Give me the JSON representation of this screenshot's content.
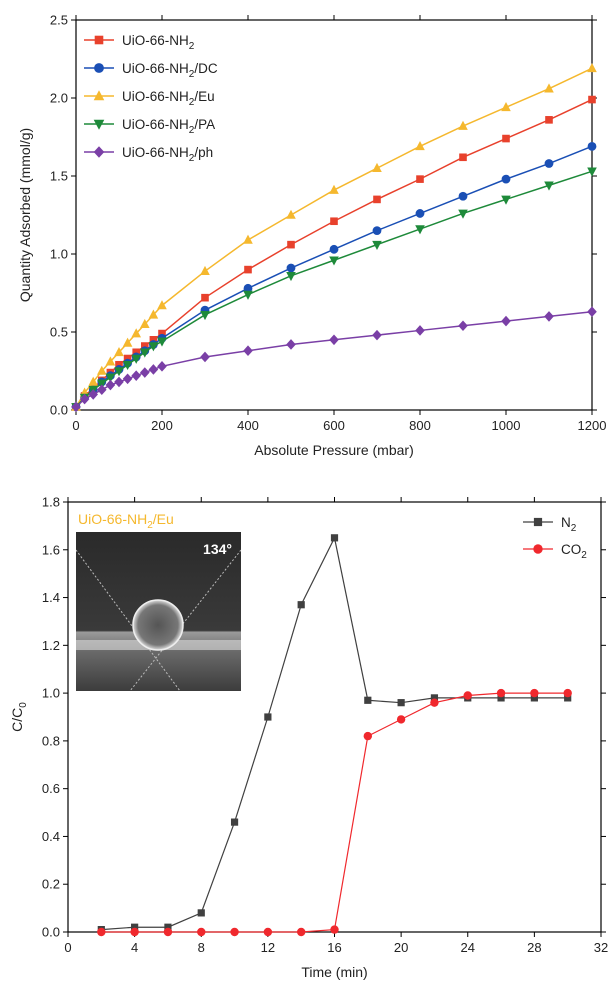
{
  "chart_data": [
    {
      "type": "line",
      "xlabel": "Absolute Pressure (mbar)",
      "ylabel": "Quantity Adsorbed (mmol/g)",
      "xlim": [
        0,
        1200
      ],
      "ylim": [
        0,
        2.5
      ],
      "xticks": [
        0,
        200,
        400,
        600,
        800,
        1000,
        1200
      ],
      "yticks": [
        0.0,
        0.5,
        1.0,
        1.5,
        2.0,
        2.5
      ],
      "xtick_labels": [
        "0",
        "200",
        "400",
        "600",
        "800",
        "1000",
        "1200"
      ],
      "ytick_labels": [
        "0.0",
        "0.5",
        "1.0",
        "1.5",
        "2.0",
        "2.5"
      ],
      "legend_position": "top-left",
      "series": [
        {
          "name": "UiO-66-NH2",
          "name_main": "UiO-66-NH",
          "name_sub": "2",
          "name_suffix": "",
          "color": "#e8412c",
          "marker": "square",
          "x": [
            0,
            20,
            40,
            60,
            80,
            100,
            120,
            140,
            160,
            180,
            200,
            300,
            400,
            500,
            600,
            700,
            800,
            900,
            1000,
            1100,
            1200
          ],
          "y": [
            0.02,
            0.09,
            0.14,
            0.19,
            0.24,
            0.29,
            0.33,
            0.37,
            0.41,
            0.45,
            0.49,
            0.72,
            0.9,
            1.06,
            1.21,
            1.35,
            1.48,
            1.62,
            1.74,
            1.86,
            1.99
          ]
        },
        {
          "name": "UiO-66-NH2/DC",
          "name_main": "UiO-66-NH",
          "name_sub": "2",
          "name_suffix": "/DC",
          "color": "#1a4fb5",
          "marker": "circle",
          "x": [
            0,
            20,
            40,
            60,
            80,
            100,
            120,
            140,
            160,
            180,
            200,
            300,
            400,
            500,
            600,
            700,
            800,
            900,
            1000,
            1100,
            1200
          ],
          "y": [
            0.02,
            0.08,
            0.13,
            0.18,
            0.22,
            0.26,
            0.3,
            0.34,
            0.38,
            0.42,
            0.46,
            0.64,
            0.78,
            0.91,
            1.03,
            1.15,
            1.26,
            1.37,
            1.48,
            1.58,
            1.69
          ]
        },
        {
          "name": "UiO-66-NH2/Eu",
          "name_main": "UiO-66-NH",
          "name_sub": "2",
          "name_suffix": "/Eu",
          "color": "#f5b82e",
          "marker": "triangle-up",
          "x": [
            0,
            20,
            40,
            60,
            80,
            100,
            120,
            140,
            160,
            180,
            200,
            300,
            400,
            500,
            600,
            700,
            800,
            900,
            1000,
            1100,
            1200
          ],
          "y": [
            0.02,
            0.11,
            0.18,
            0.25,
            0.31,
            0.37,
            0.43,
            0.49,
            0.55,
            0.61,
            0.67,
            0.89,
            1.09,
            1.25,
            1.41,
            1.55,
            1.69,
            1.82,
            1.94,
            2.06,
            2.19
          ]
        },
        {
          "name": "UiO-66-NH2/PA",
          "name_main": "UiO-66-NH",
          "name_sub": "2",
          "name_suffix": "/PA",
          "color": "#1e8a3a",
          "marker": "triangle-down",
          "x": [
            0,
            20,
            40,
            60,
            80,
            100,
            120,
            140,
            160,
            180,
            200,
            300,
            400,
            500,
            600,
            700,
            800,
            900,
            1000,
            1100,
            1200
          ],
          "y": [
            0.02,
            0.08,
            0.13,
            0.17,
            0.21,
            0.25,
            0.29,
            0.33,
            0.37,
            0.41,
            0.44,
            0.61,
            0.74,
            0.86,
            0.96,
            1.06,
            1.16,
            1.26,
            1.35,
            1.44,
            1.53
          ]
        },
        {
          "name": "UiO-66-NH2/ph",
          "name_main": "UiO-66-NH",
          "name_sub": "2",
          "name_suffix": "/ph",
          "color": "#7a3fa6",
          "marker": "diamond",
          "x": [
            0,
            20,
            40,
            60,
            80,
            100,
            120,
            140,
            160,
            180,
            200,
            300,
            400,
            500,
            600,
            700,
            800,
            900,
            1000,
            1100,
            1200
          ],
          "y": [
            0.02,
            0.07,
            0.1,
            0.13,
            0.16,
            0.18,
            0.2,
            0.22,
            0.24,
            0.26,
            0.28,
            0.34,
            0.38,
            0.42,
            0.45,
            0.48,
            0.51,
            0.54,
            0.57,
            0.6,
            0.63
          ]
        }
      ]
    },
    {
      "type": "line",
      "xlabel": "Time (min)",
      "ylabel": "C/C0",
      "ylabel_main": "C/C",
      "ylabel_sub": "0",
      "xlim": [
        0,
        32
      ],
      "ylim": [
        0,
        1.8
      ],
      "xticks": [
        0,
        4,
        8,
        12,
        16,
        20,
        24,
        28,
        32
      ],
      "yticks": [
        0.0,
        0.2,
        0.4,
        0.6,
        0.8,
        1.0,
        1.2,
        1.4,
        1.6,
        1.8
      ],
      "xtick_labels": [
        "0",
        "4",
        "8",
        "12",
        "16",
        "20",
        "24",
        "28",
        "32"
      ],
      "ytick_labels": [
        "0.0",
        "0.2",
        "0.4",
        "0.6",
        "0.8",
        "1.0",
        "1.2",
        "1.4",
        "1.6",
        "1.8"
      ],
      "legend_position": "top-right",
      "series": [
        {
          "name": "N2",
          "name_main": "N",
          "name_sub": "2",
          "name_suffix": "",
          "color": "#404040",
          "marker": "square",
          "x": [
            2,
            4,
            6,
            8,
            10,
            12,
            14,
            16,
            18,
            20,
            22,
            24,
            26,
            28,
            30
          ],
          "y": [
            0.01,
            0.02,
            0.02,
            0.08,
            0.46,
            0.9,
            1.37,
            1.65,
            0.97,
            0.96,
            0.98,
            0.98,
            0.98,
            0.98,
            0.98
          ]
        },
        {
          "name": "CO2",
          "name_main": "CO",
          "name_sub": "2",
          "name_suffix": "",
          "color": "#f0282d",
          "marker": "circle",
          "x": [
            2,
            4,
            6,
            8,
            10,
            12,
            14,
            16,
            18,
            20,
            22,
            24,
            26,
            28,
            30
          ],
          "y": [
            0.0,
            0.0,
            0.0,
            0.0,
            0.0,
            0.0,
            0.0,
            0.01,
            0.82,
            0.89,
            0.96,
            0.99,
            1.0,
            1.0,
            1.0
          ]
        }
      ],
      "inset": {
        "title_main": "UiO-66-NH",
        "title_sub": "2",
        "title_suffix": "/Eu",
        "title_color": "#f5b82e",
        "angle_label": "134°"
      }
    }
  ]
}
